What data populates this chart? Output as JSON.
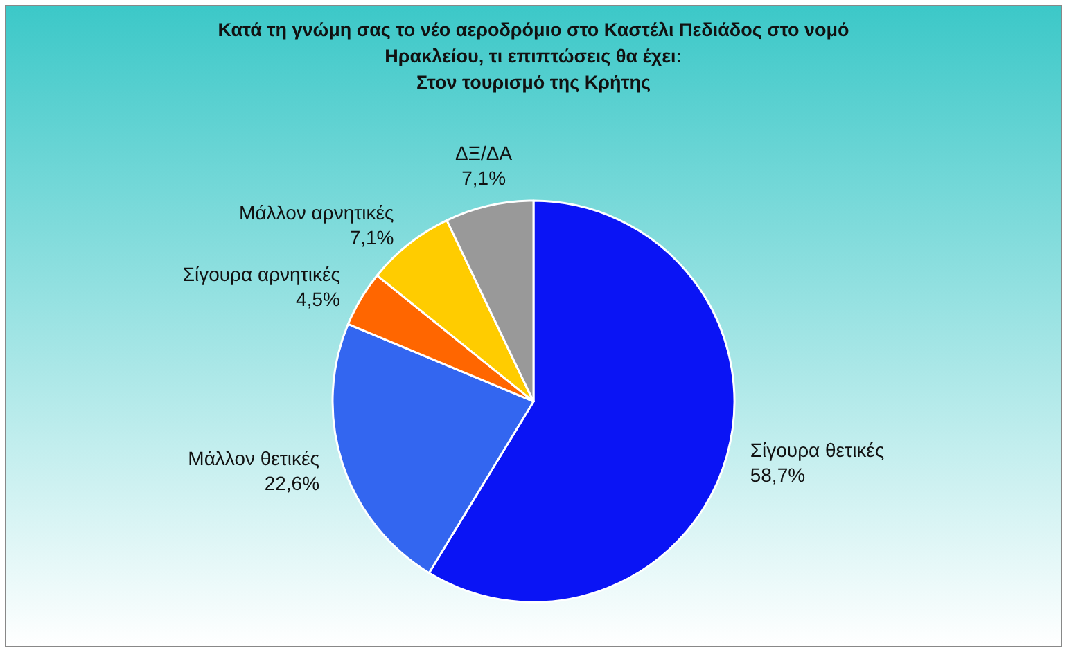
{
  "chart_data": {
    "type": "pie",
    "title": "Κατά τη γνώμη σας το νέο αεροδρόμιο στο Καστέλι Πεδιάδος στο νομό Ηρακλείου, τι επιπτώσεις θα έχει:",
    "subtitle": "Στον τουρισμό της Κρήτης",
    "categories": [
      "Σίγουρα θετικές",
      "Μάλλον θετικές",
      "Σίγουρα αρνητικές",
      "Μάλλον αρνητικές",
      "ΔΞ/ΔΑ"
    ],
    "values": [
      58.7,
      22.6,
      4.5,
      7.1,
      7.1
    ],
    "value_labels": [
      "58,7%",
      "22,6%",
      "4,5%",
      "7,1%",
      "7,1%"
    ],
    "colors": [
      "#0a14f5",
      "#3366f0",
      "#ff6600",
      "#ffcc00",
      "#999999"
    ]
  }
}
